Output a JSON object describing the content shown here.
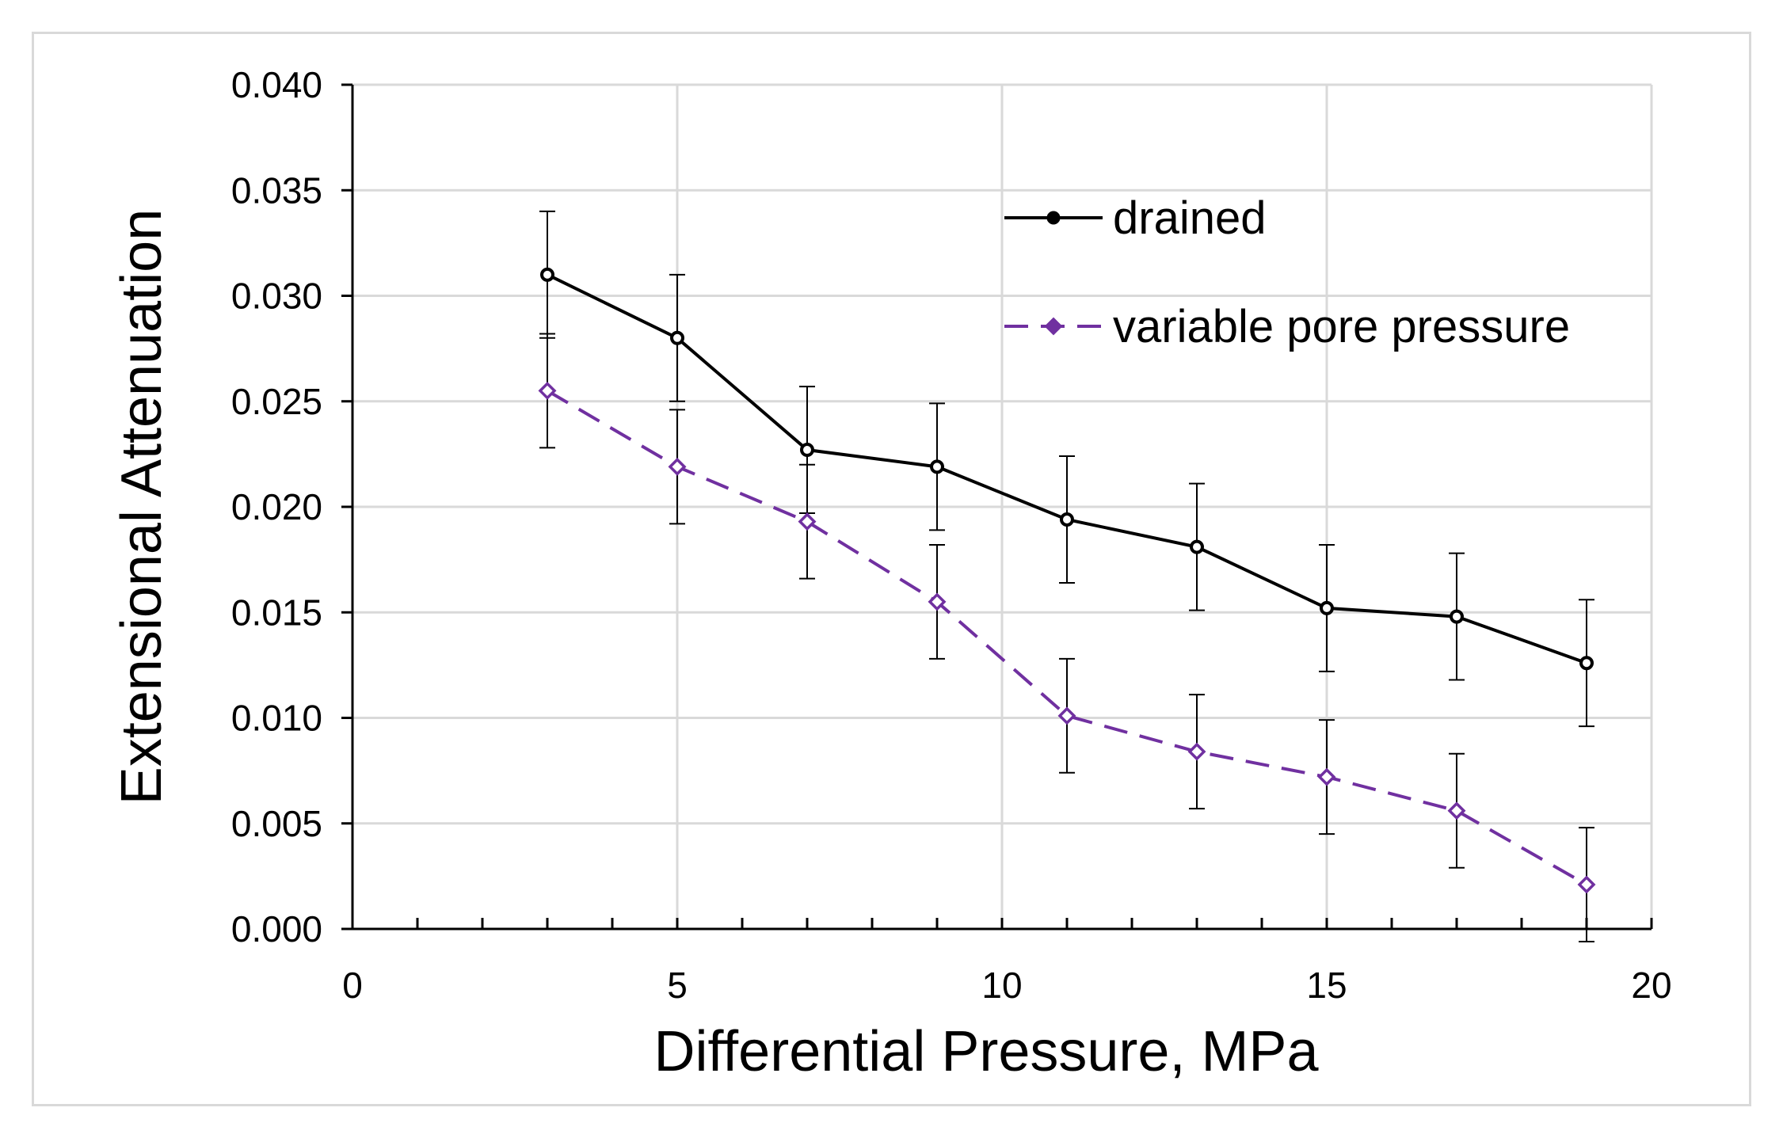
{
  "chart_data": {
    "type": "line",
    "title": "",
    "xlabel": "Differential Pressure, MPa",
    "ylabel": "Extensional Attenuation",
    "xlim": [
      0,
      20
    ],
    "ylim": [
      0,
      0.04
    ],
    "x_ticks": [
      0,
      5,
      10,
      15,
      20
    ],
    "x_tick_labels": [
      "0",
      "5",
      "10",
      "15",
      "20"
    ],
    "x_minor_step": 1,
    "y_ticks": [
      0.0,
      0.005,
      0.01,
      0.015,
      0.02,
      0.025,
      0.03,
      0.035,
      0.04
    ],
    "y_tick_labels": [
      "0.000",
      "0.005",
      "0.010",
      "0.015",
      "0.020",
      "0.025",
      "0.030",
      "0.035",
      "0.040"
    ],
    "grid": true,
    "legend_position": "top-right",
    "x": [
      3,
      5,
      7,
      9,
      11,
      13,
      15,
      17,
      19
    ],
    "series": [
      {
        "name": "drained",
        "color": "#000000",
        "line_style": "solid",
        "marker": "circle",
        "values": [
          0.031,
          0.028,
          0.0227,
          0.0219,
          0.0194,
          0.0181,
          0.0152,
          0.0148,
          0.0126
        ],
        "error": [
          0.003,
          0.003,
          0.003,
          0.003,
          0.003,
          0.003,
          0.003,
          0.003,
          0.003
        ]
      },
      {
        "name": "variable pore pressure",
        "color": "#7030a0",
        "line_style": "dashed",
        "marker": "diamond",
        "values": [
          0.0255,
          0.0219,
          0.0193,
          0.0155,
          0.0101,
          0.0084,
          0.0072,
          0.0056,
          0.0021
        ],
        "error": [
          0.0027,
          0.0027,
          0.0027,
          0.0027,
          0.0027,
          0.0027,
          0.0027,
          0.0027,
          0.0027
        ]
      }
    ]
  }
}
